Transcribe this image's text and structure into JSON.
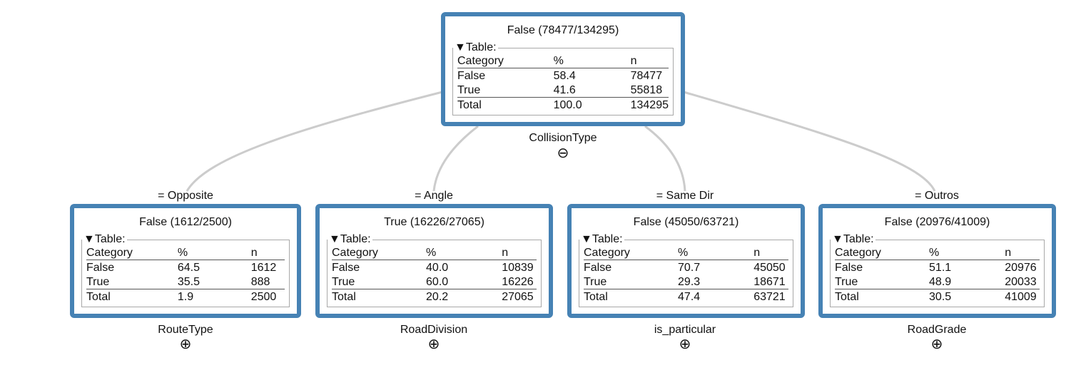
{
  "root": {
    "title": "False (78477/134295)",
    "legend": "▼Table:",
    "headers": [
      "Category",
      "%",
      "n"
    ],
    "rows": [
      [
        "False",
        "58.4",
        "78477"
      ],
      [
        "True",
        "41.6",
        "55818"
      ]
    ],
    "total": [
      "Total",
      "100.0",
      "134295"
    ],
    "split": "CollisionType",
    "toggle": "⊖"
  },
  "children": [
    {
      "edge": "= Opposite",
      "title": "False (1612/2500)",
      "legend": "▼Table:",
      "headers": [
        "Category",
        "%",
        "n"
      ],
      "rows": [
        [
          "False",
          "64.5",
          "1612"
        ],
        [
          "True",
          "35.5",
          "888"
        ]
      ],
      "total": [
        "Total",
        "1.9",
        "2500"
      ],
      "split": "RouteType",
      "toggle": "⊕"
    },
    {
      "edge": "= Angle",
      "title": "True (16226/27065)",
      "legend": "▼Table:",
      "headers": [
        "Category",
        "%",
        "n"
      ],
      "rows": [
        [
          "False",
          "40.0",
          "10839"
        ],
        [
          "True",
          "60.0",
          "16226"
        ]
      ],
      "total": [
        "Total",
        "20.2",
        "27065"
      ],
      "split": "RoadDivision",
      "toggle": "⊕"
    },
    {
      "edge": "= Same Dir",
      "title": "False (45050/63721)",
      "legend": "▼Table:",
      "headers": [
        "Category",
        "%",
        "n"
      ],
      "rows": [
        [
          "False",
          "70.7",
          "45050"
        ],
        [
          "True",
          "29.3",
          "18671"
        ]
      ],
      "total": [
        "Total",
        "47.4",
        "63721"
      ],
      "split": "is_particular",
      "toggle": "⊕"
    },
    {
      "edge": "= Outros",
      "title": "False (20976/41009)",
      "legend": "▼Table:",
      "headers": [
        "Category",
        "%",
        "n"
      ],
      "rows": [
        [
          "False",
          "51.1",
          "20976"
        ],
        [
          "True",
          "48.9",
          "20033"
        ]
      ],
      "total": [
        "Total",
        "30.5",
        "41009"
      ],
      "split": "RoadGrade",
      "toggle": "⊕"
    }
  ],
  "colors": {
    "node_border": "#4682b4",
    "edge": "#cccccc"
  }
}
